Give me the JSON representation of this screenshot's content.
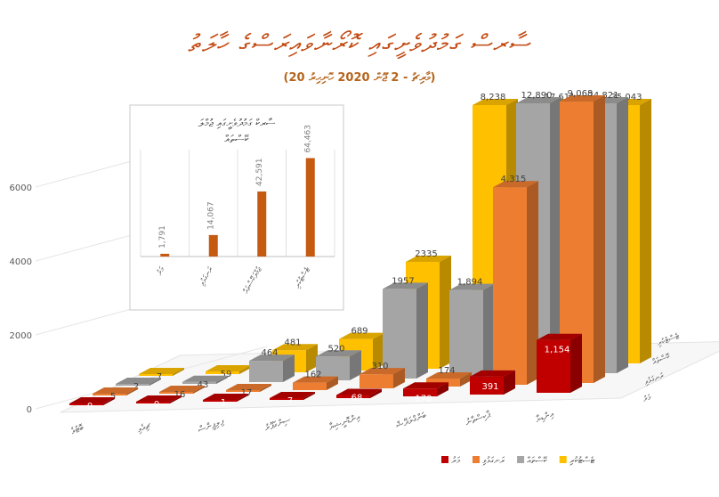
{
  "chart_data": [
    {
      "type": "bar",
      "title": "ސާރސް ގަމުދުވެށީގައި ކޮރޯނާވައިރަސްގެ ހާލަތު",
      "subtitle": "(20 މާރިޗު - 2 ޖޫން 2020 ހޮނިހިރު)",
      "y_ticks": [
        0,
        2000,
        4000,
        6000
      ],
      "categories": [
        "ބޮޓުވެ",
        "ޗިއެވި",
        "ފިލިޕީންސް",
        "ސިންގަޕޫރު",
        "އިންޑޮނީޝިޔާ",
        "ބަންގްލަދޭޝް",
        "ޕާކިސްތާނު",
        "އިންޑިޔާ"
      ],
      "series": [
        {
          "name": "މަރު",
          "color": "#c00000",
          "values": [
            0,
            0,
            1,
            7,
            68,
            170,
            391,
            1154
          ]
        },
        {
          "name": "ރަނގަޅުވި",
          "color": "#ed7d31",
          "values": [
            5,
            16,
            17,
            162,
            310,
            174,
            4315,
            9068
          ]
        },
        {
          "name": "ކޭސްތައް",
          "color": "#a5a5a5",
          "values": [
            2,
            43,
            464,
            520,
            1957,
            1894,
            12890,
            24821
          ]
        },
        {
          "name": "ޓެސްޓުކުރި",
          "color": "#ffc000",
          "values": [
            7,
            59,
            481,
            689,
            2335,
            8238,
            17611,
            35043
          ]
        }
      ],
      "data_labels": [
        [
          "0",
          "0",
          "1",
          "7",
          "68",
          "170",
          "391",
          "1,154"
        ],
        [
          "5",
          "16",
          "17",
          "162",
          "310",
          "174",
          "4,315",
          "9,068"
        ],
        [
          "2",
          "43",
          "464",
          "520",
          "1957",
          "1,894",
          "12,890",
          "24,821"
        ],
        [
          "7",
          "59",
          "481",
          "689",
          "2335",
          "8,238",
          "17,611",
          "35,043"
        ]
      ],
      "depth_labels": [
        "ޓެސްޓުކުރި",
        "ކޭސްތައް",
        "ރަނގަޅުވި",
        "މަރު"
      ],
      "legend_position": "bottom-right"
    },
    {
      "type": "bar",
      "title": "ސާރކް ގަމުދުވެށީގައި ޖުމްލަ ކޭސްތައް",
      "categories": [
        "މަރު",
        "ރަނގަޅުވި",
        "ޖުމްލަކޭސްތައް",
        "ޓެސްޓުކުރި"
      ],
      "values": [
        1791,
        14067,
        42591,
        64463
      ],
      "value_labels": [
        "1,791",
        "14,067",
        "42,591",
        "64,463"
      ],
      "color": "#c55a11"
    }
  ]
}
